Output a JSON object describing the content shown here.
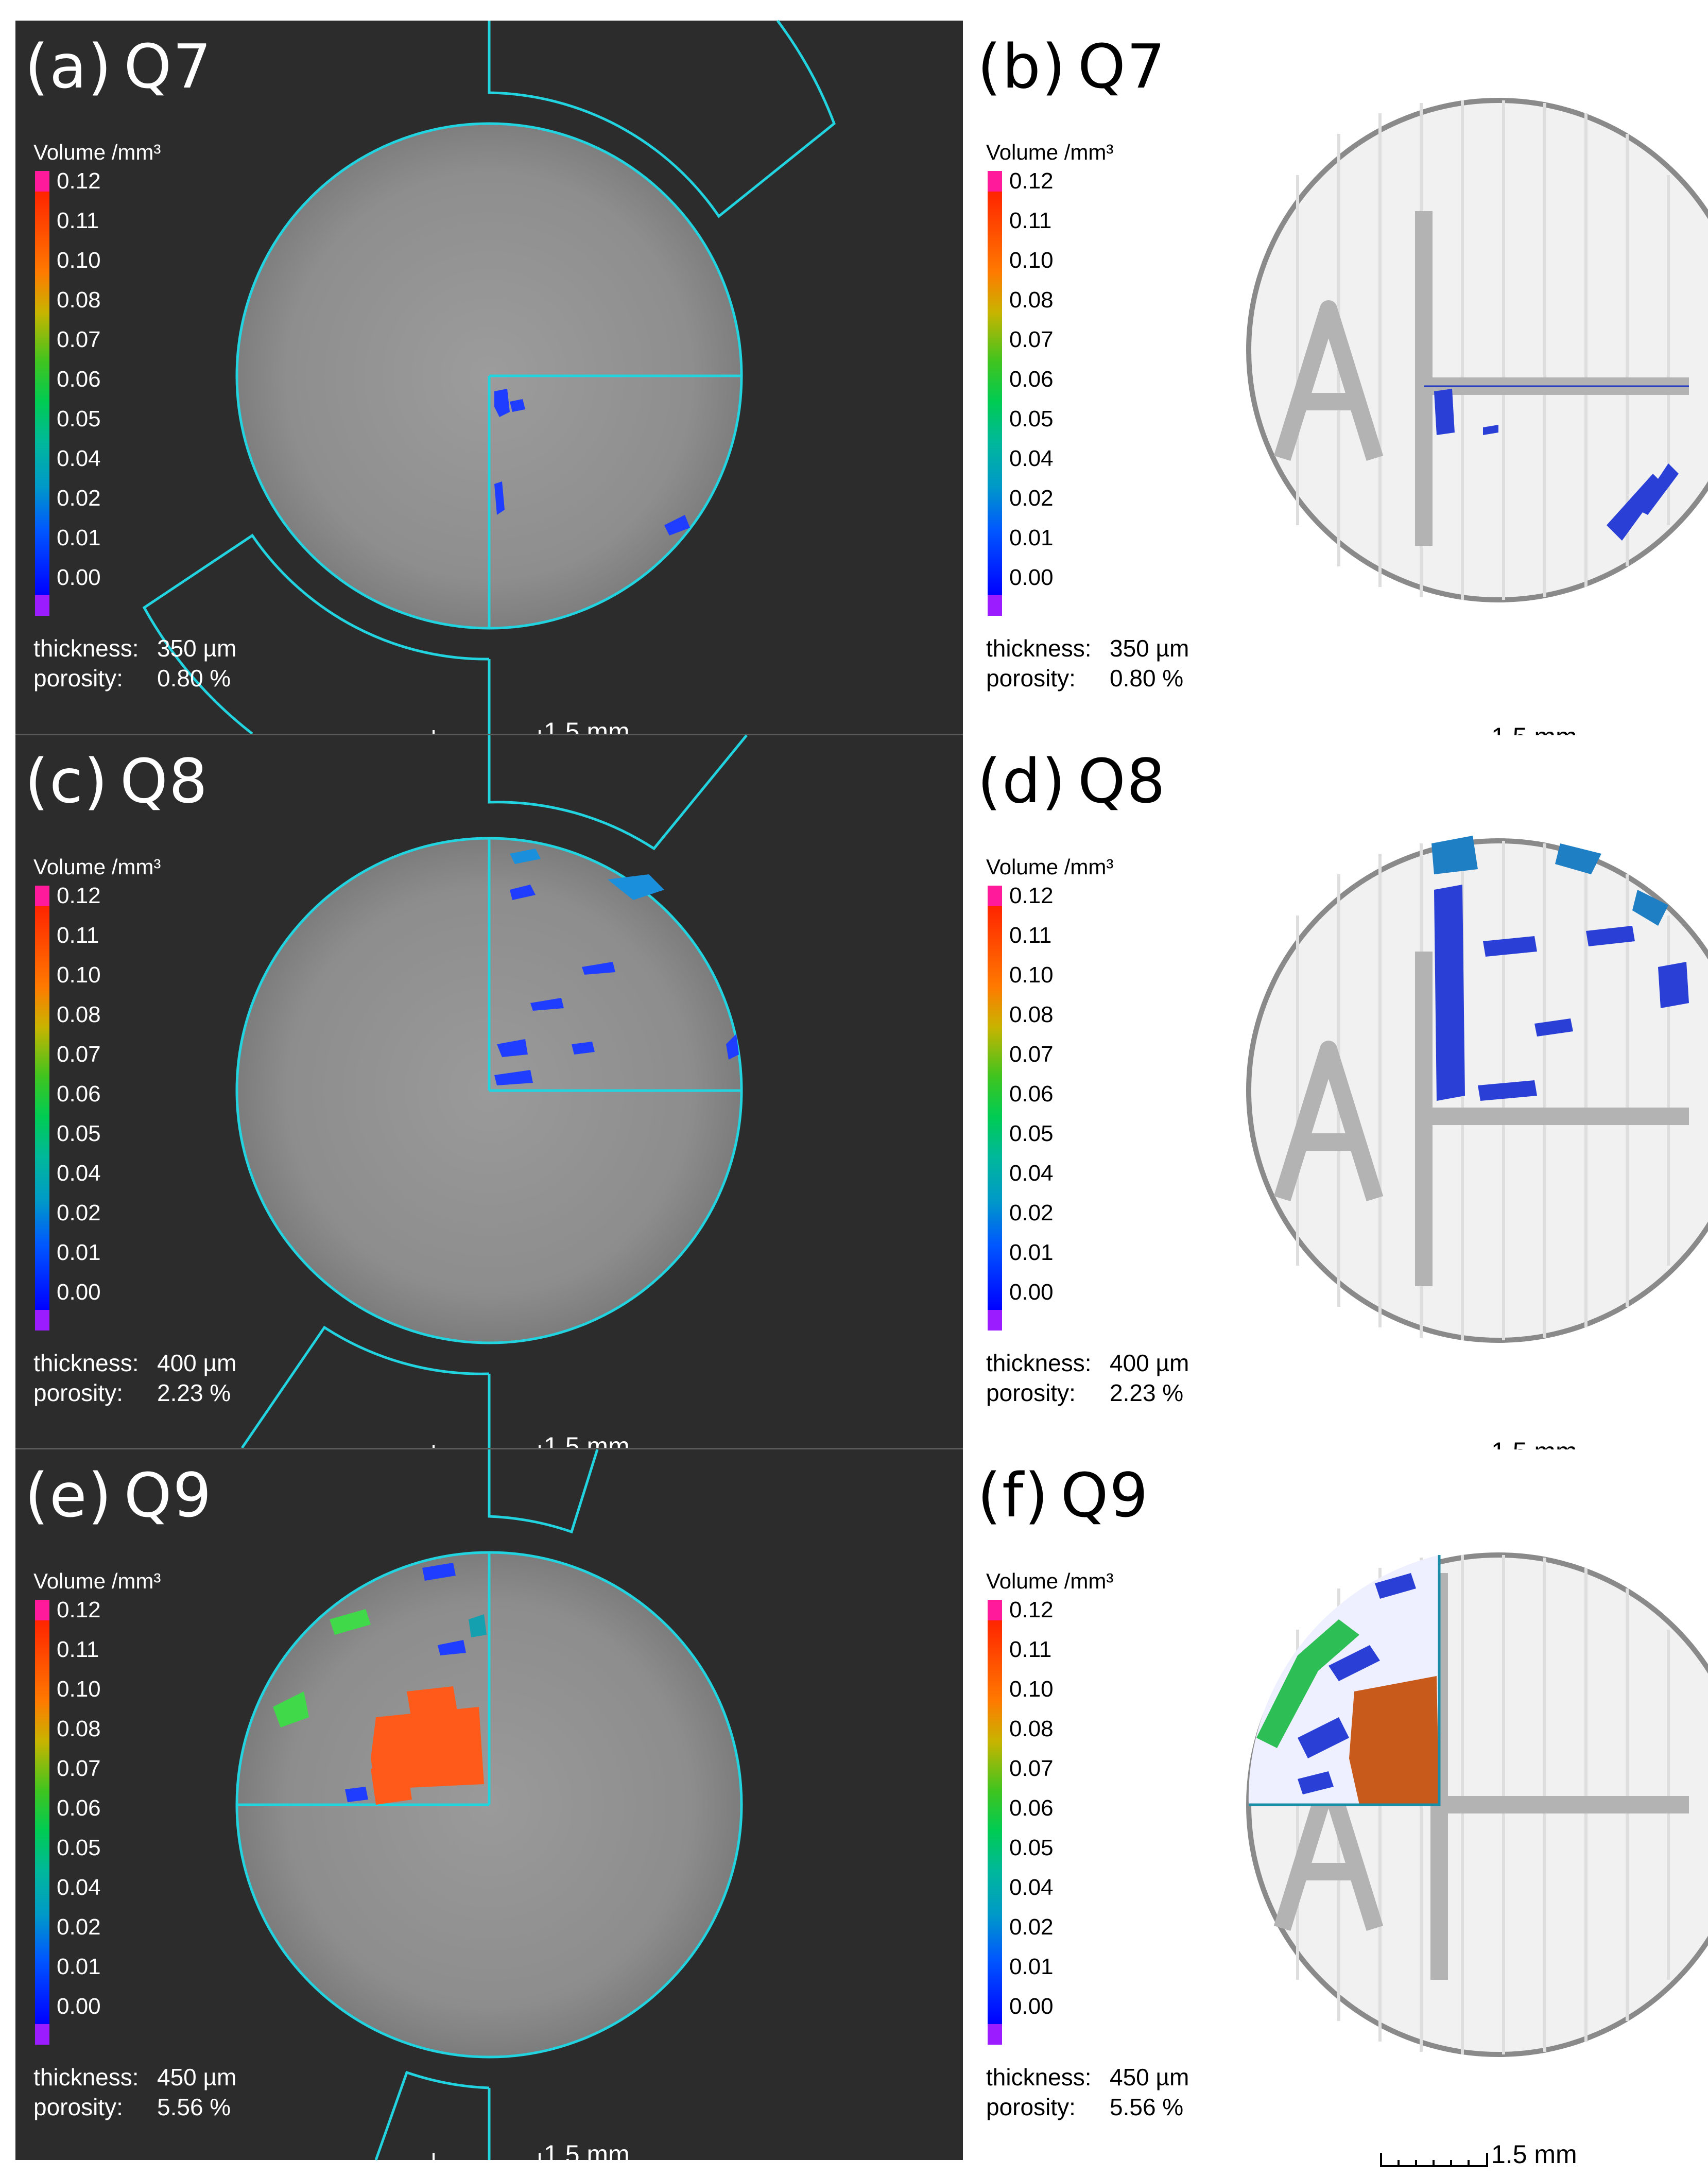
{
  "units_label": "Volume /mm³",
  "ticks": [
    "0.12",
    "0.11",
    "0.10",
    "0.08",
    "0.07",
    "0.06",
    "0.05",
    "0.04",
    "0.02",
    "0.01",
    "0.00"
  ],
  "thickness_key": "thickness:",
  "porosity_key": "porosity:",
  "scale_label": "1.5 mm",
  "colors": {
    "outline": "#22d3e0",
    "background": "#2c2c2c"
  },
  "panels": [
    {
      "letter": "(a)",
      "sample": "Q7",
      "thickness": "350 µm",
      "porosity": "0.80 %"
    },
    {
      "letter": "(b)",
      "sample": "Q7",
      "thickness": "350 µm",
      "porosity": "0.80 %"
    },
    {
      "letter": "(c)",
      "sample": "Q8",
      "thickness": "400 µm",
      "porosity": "2.23 %"
    },
    {
      "letter": "(d)",
      "sample": "Q8",
      "thickness": "400 µm",
      "porosity": "2.23 %"
    },
    {
      "letter": "(e)",
      "sample": "Q9",
      "thickness": "450 µm",
      "porosity": "5.56 %"
    },
    {
      "letter": "(f)",
      "sample": "Q9",
      "thickness": "450 µm",
      "porosity": "5.56 %"
    }
  ]
}
